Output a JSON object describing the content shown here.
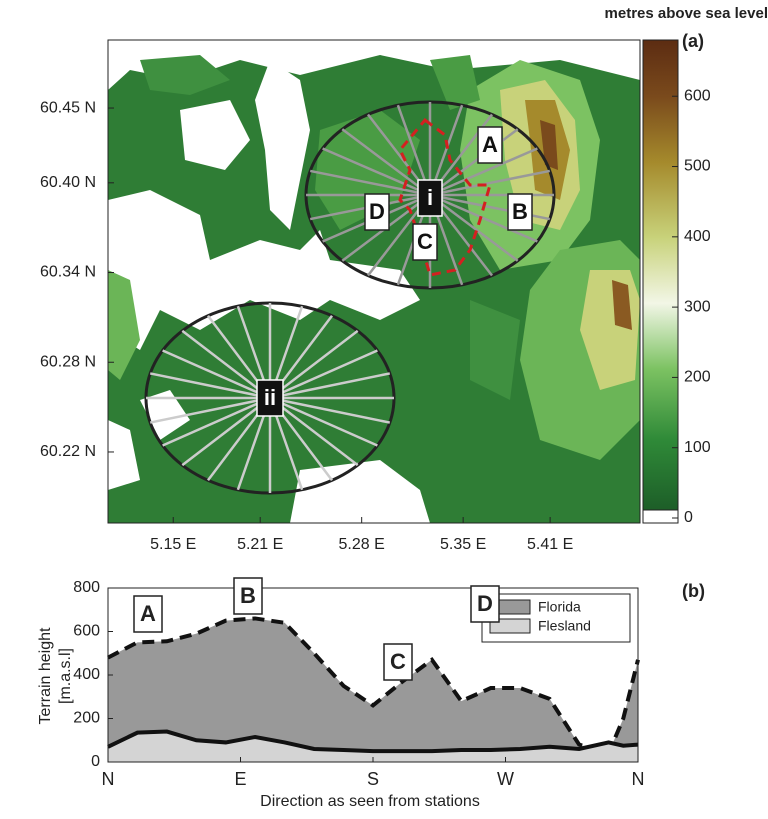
{
  "chart_data": [
    {
      "type": "map",
      "colorbar_title": "metres above sea level",
      "panel_label": "(a)",
      "xlim": [
        5.105,
        5.472
      ],
      "xticks": [
        {
          "value": 5.15,
          "label": "5.15 E"
        },
        {
          "value": 5.21,
          "label": "5.21 E"
        },
        {
          "value": 5.28,
          "label": "5.28 E"
        },
        {
          "value": 5.35,
          "label": "5.35 E"
        },
        {
          "value": 5.41,
          "label": "5.41 E"
        }
      ],
      "ylim": [
        60.1725,
        60.4955
      ],
      "yticks": [
        {
          "value": 60.45,
          "label": "60.45 N"
        },
        {
          "value": 60.4,
          "label": "60.40 N"
        },
        {
          "value": 60.34,
          "label": "60.34 N"
        },
        {
          "value": 60.28,
          "label": "60.28 N"
        },
        {
          "value": 60.22,
          "label": "60.22 N"
        }
      ],
      "clim": [
        0,
        680
      ],
      "cticks": [
        0,
        100,
        200,
        300,
        400,
        500,
        600
      ],
      "annotations": [
        "A",
        "B",
        "C",
        "D",
        "i",
        "ii"
      ]
    },
    {
      "type": "area",
      "panel_label": "(b)",
      "ylabel": [
        "Terrain height",
        "[m.a.s.l]"
      ],
      "xlabel": "Direction as seen from stations",
      "xlim": [
        0,
        360
      ],
      "xticks": [
        {
          "value": 0,
          "label": "N"
        },
        {
          "value": 90,
          "label": "E"
        },
        {
          "value": 180,
          "label": "S"
        },
        {
          "value": 270,
          "label": "W"
        },
        {
          "value": 360,
          "label": "N"
        }
      ],
      "ylim": [
        0,
        800
      ],
      "yticks": [
        0,
        200,
        400,
        600,
        800
      ],
      "x": [
        0,
        20,
        40,
        60,
        80,
        100,
        120,
        140,
        160,
        180,
        200,
        220,
        240,
        260,
        280,
        300,
        320,
        340,
        350,
        360
      ],
      "series": [
        {
          "name": "Florida",
          "color": "#999999",
          "values": [
            480,
            550,
            555,
            590,
            650,
            660,
            640,
            500,
            350,
            260,
            370,
            470,
            280,
            340,
            340,
            290,
            80,
            40,
            200,
            470
          ]
        },
        {
          "name": "Flesland",
          "color": "#d4d4d4",
          "values": [
            70,
            135,
            140,
            100,
            90,
            115,
            90,
            60,
            55,
            50,
            50,
            50,
            55,
            55,
            60,
            70,
            60,
            90,
            75,
            80
          ]
        }
      ],
      "legend": "upper right",
      "annotations": [
        "A",
        "B",
        "C",
        "D"
      ]
    }
  ]
}
